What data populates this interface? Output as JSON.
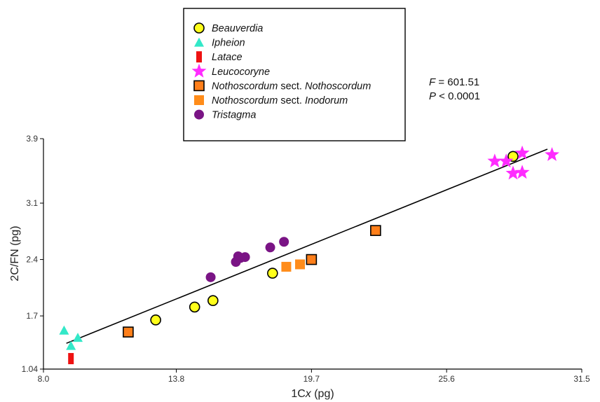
{
  "chart_data": {
    "type": "scatter",
    "xlabel_prefix": "1C",
    "xlabel_italic": "x",
    "xlabel_suffix": " (pg)",
    "ylabel": "2C/FN (pg)",
    "xlim": [
      8.0,
      31.5
    ],
    "ylim": [
      1.04,
      3.9
    ],
    "x_ticks": [
      8.0,
      13.8,
      19.7,
      25.6,
      31.5
    ],
    "y_ticks": [
      1.04,
      1.7,
      2.4,
      3.1,
      3.9
    ],
    "x_tick_labels": [
      "8.0",
      "13.8",
      "19.7",
      "25.6",
      "31.5"
    ],
    "y_tick_labels": [
      "1.04",
      "1.7",
      "2.4",
      "3.1",
      "3.9"
    ],
    "grid": false,
    "legend_position": "top-center",
    "regression_line": {
      "x": [
        9.0,
        30.0
      ],
      "y": [
        1.36,
        3.77
      ]
    },
    "stats": {
      "f_label": "F",
      "f_value": " = 601.51",
      "p_label": "P",
      "p_value": " < 0.0001"
    },
    "series": [
      {
        "name": "Beauverdia",
        "marker": "circle",
        "color": "#ffff1a",
        "stroke": "#000000",
        "points": [
          [
            12.9,
            1.65
          ],
          [
            14.6,
            1.81
          ],
          [
            15.4,
            1.89
          ],
          [
            18.0,
            2.23
          ],
          [
            28.5,
            3.68
          ]
        ]
      },
      {
        "name": "Ipheion",
        "marker": "triangle",
        "color": "#33e8c8",
        "stroke": "none",
        "points": [
          [
            8.9,
            1.52
          ],
          [
            9.2,
            1.33
          ],
          [
            9.5,
            1.43
          ]
        ]
      },
      {
        "name": "Latace",
        "marker": "bar",
        "color": "#ee1111",
        "stroke": "none",
        "points": [
          [
            9.2,
            1.17
          ]
        ]
      },
      {
        "name": "Leucocoryne",
        "marker": "star",
        "color": "#ff2bff",
        "stroke": "none",
        "points": [
          [
            27.7,
            3.62
          ],
          [
            28.2,
            3.62
          ],
          [
            28.9,
            3.72
          ],
          [
            28.5,
            3.47
          ],
          [
            28.9,
            3.48
          ],
          [
            30.2,
            3.7
          ]
        ]
      },
      {
        "name": "Nothoscordum",
        "name_suffix": " sect. ",
        "name_suffix_italic": "Nothoscordum",
        "marker": "square",
        "color": "#ff7f1a",
        "stroke": "#000000",
        "points": [
          [
            11.7,
            1.5
          ],
          [
            19.7,
            2.4
          ],
          [
            22.5,
            2.76
          ]
        ]
      },
      {
        "name": "Nothoscordum",
        "name_suffix": " sect. ",
        "name_suffix_italic": "Inodorum",
        "marker": "square",
        "color": "#ff8c1a",
        "stroke": "none",
        "points": [
          [
            18.6,
            2.31
          ],
          [
            19.2,
            2.34
          ]
        ]
      },
      {
        "name": "Tristagma",
        "marker": "circle",
        "color": "#7a1485",
        "stroke": "none",
        "points": [
          [
            15.3,
            2.18
          ],
          [
            16.4,
            2.37
          ],
          [
            16.6,
            2.42
          ],
          [
            16.5,
            2.44
          ],
          [
            16.8,
            2.43
          ],
          [
            17.9,
            2.55
          ],
          [
            18.5,
            2.62
          ]
        ]
      }
    ]
  }
}
